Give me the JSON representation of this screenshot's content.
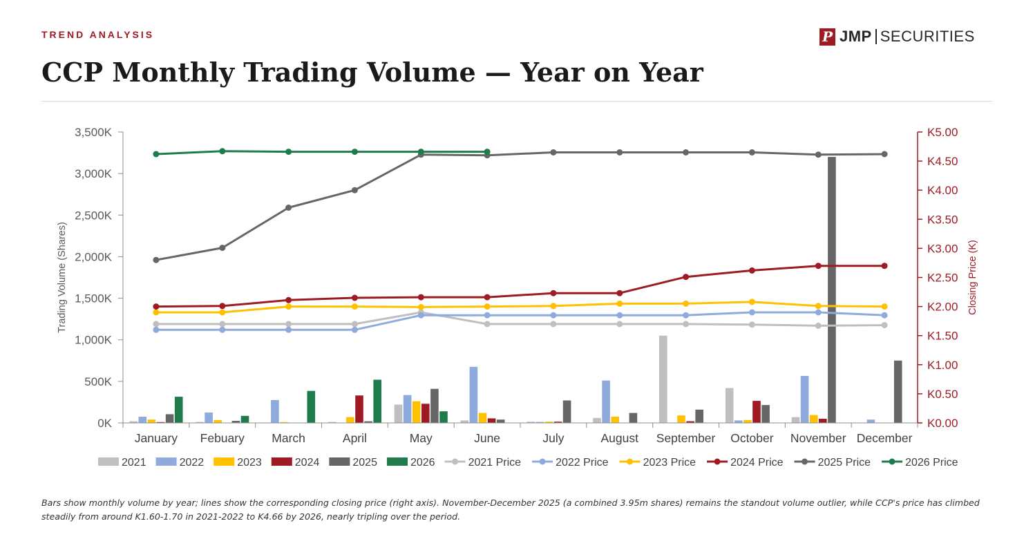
{
  "header": {
    "eyebrow": "TREND ANALYSIS",
    "title": "CCP Monthly Trading Volume — Year on Year",
    "logo": {
      "mark": "P",
      "strong": "JMP",
      "light": "SECURITIES"
    }
  },
  "caption": "Bars show monthly volume by year; lines show the corresponding closing price (right axis). November-December 2025 (a combined 3.95m shares) remains the standout volume outlier, while CCP's price has climbed steadily from around K1.60-1.70 in 2021-2022 to K4.66 by 2026, nearly tripling over the period.",
  "colors": {
    "2021": "#bfbfbf",
    "2022": "#8faadc",
    "2023": "#ffc000",
    "2024": "#9e1b24",
    "2025": "#666666",
    "2026": "#1e7b4a",
    "axis_right": "#9e1b24",
    "axis_left": "#595959"
  },
  "chart_data": {
    "type": "bar",
    "categories": [
      "January",
      "Febuary",
      "March",
      "April",
      "May",
      "June",
      "July",
      "August",
      "September",
      "October",
      "November",
      "December"
    ],
    "ylabel": "Trading Volume (Shares)",
    "y2label": "Closing Price (K)",
    "ylim": [
      0,
      3500000
    ],
    "y2lim": [
      0,
      5
    ],
    "yticks": [
      "0K",
      "500K",
      "1,000K",
      "1,500K",
      "2,000K",
      "2,500K",
      "3,000K",
      "3,500K"
    ],
    "y2ticks": [
      "K0.00",
      "K0.50",
      "K1.00",
      "K1.50",
      "K2.00",
      "K2.50",
      "K3.00",
      "K3.50",
      "K4.00",
      "K4.50",
      "K5.00"
    ],
    "legend_position": "bottom",
    "grid": false,
    "bar_series": [
      {
        "name": "2021",
        "values": [
          20000,
          12000,
          5000,
          12000,
          220000,
          30000,
          15000,
          60000,
          1050000,
          420000,
          70000,
          0
        ]
      },
      {
        "name": "2022",
        "values": [
          75000,
          125000,
          275000,
          0,
          335000,
          675000,
          12000,
          510000,
          0,
          30000,
          565000,
          40000
        ]
      },
      {
        "name": "2023",
        "values": [
          40000,
          35000,
          10000,
          70000,
          260000,
          120000,
          15000,
          75000,
          90000,
          35000,
          95000,
          0
        ]
      },
      {
        "name": "2024",
        "values": [
          10000,
          0,
          0,
          330000,
          230000,
          55000,
          15000,
          0,
          20000,
          265000,
          50000,
          0
        ]
      },
      {
        "name": "2025",
        "values": [
          105000,
          25000,
          0,
          20000,
          410000,
          40000,
          270000,
          120000,
          160000,
          215000,
          3200000,
          750000
        ]
      },
      {
        "name": "2026",
        "values": [
          315000,
          85000,
          385000,
          520000,
          140000,
          0,
          null,
          null,
          null,
          null,
          null,
          null
        ]
      }
    ],
    "line_series": [
      {
        "name": "2021 Price",
        "values": [
          1.7,
          1.7,
          1.7,
          1.7,
          1.9,
          1.7,
          1.7,
          1.7,
          1.7,
          1.69,
          1.67,
          1.68
        ]
      },
      {
        "name": "2022 Price",
        "values": [
          1.6,
          1.6,
          1.6,
          1.6,
          1.85,
          1.85,
          1.85,
          1.85,
          1.85,
          1.9,
          1.9,
          1.85
        ]
      },
      {
        "name": "2023 Price",
        "values": [
          1.9,
          1.9,
          2.0,
          2.0,
          1.99,
          2.0,
          2.01,
          2.05,
          2.05,
          2.08,
          2.01,
          2.0
        ]
      },
      {
        "name": "2024 Price",
        "values": [
          2.0,
          2.01,
          2.11,
          2.15,
          2.16,
          2.16,
          2.23,
          2.23,
          2.51,
          2.62,
          2.7,
          2.7
        ]
      },
      {
        "name": "2025 Price",
        "values": [
          2.8,
          3.01,
          3.7,
          4.0,
          4.61,
          4.6,
          4.65,
          4.65,
          4.65,
          4.65,
          4.61,
          4.62
        ]
      },
      {
        "name": "2026 Price",
        "values": [
          4.62,
          4.67,
          4.66,
          4.66,
          4.66,
          4.66,
          null,
          null,
          null,
          null,
          null,
          null
        ]
      }
    ]
  }
}
